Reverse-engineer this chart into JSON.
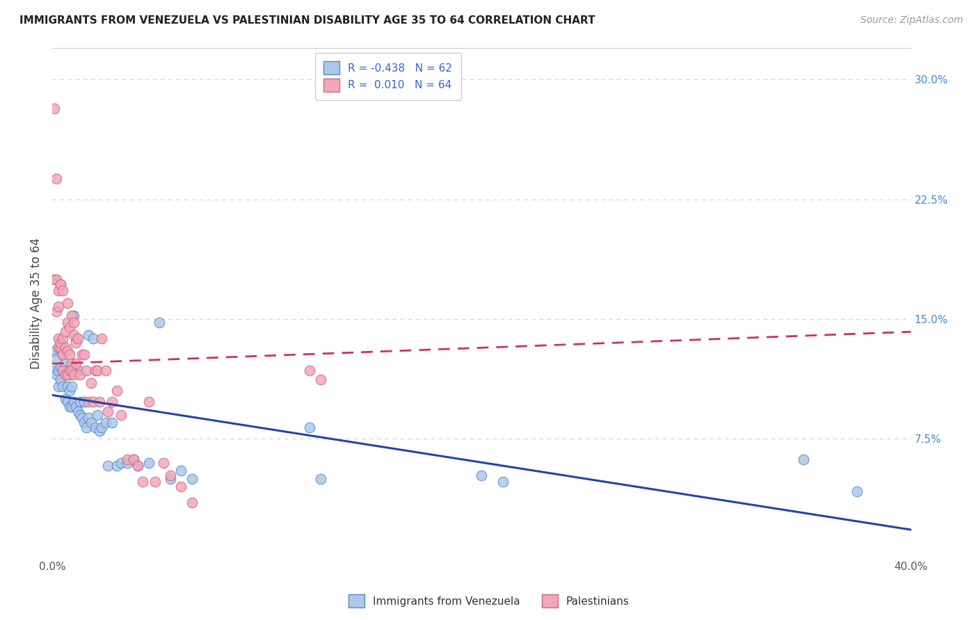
{
  "title": "IMMIGRANTS FROM VENEZUELA VS PALESTINIAN DISABILITY AGE 35 TO 64 CORRELATION CHART",
  "source": "Source: ZipAtlas.com",
  "ylabel": "Disability Age 35 to 64",
  "xlim": [
    0.0,
    0.4
  ],
  "ylim": [
    0.0,
    0.32
  ],
  "xticks": [
    0.0,
    0.05,
    0.1,
    0.15,
    0.2,
    0.25,
    0.3,
    0.35,
    0.4
  ],
  "xticklabels": [
    "0.0%",
    "",
    "",
    "",
    "",
    "",
    "",
    "",
    "40.0%"
  ],
  "yticks_right": [
    0.075,
    0.15,
    0.225,
    0.3
  ],
  "yticklabels_right": [
    "7.5%",
    "15.0%",
    "22.5%",
    "30.0%"
  ],
  "grid_color": "#d8d8d8",
  "background_color": "#ffffff",
  "venezuela_color": "#adc8e8",
  "venezuela_edge": "#5588cc",
  "palestine_color": "#f0a8b8",
  "palestine_edge": "#cc6688",
  "trend_blue": "#2244aa",
  "trend_pink": "#cc3355",
  "R_venezuela": -0.438,
  "N_venezuela": 62,
  "R_palestine": 0.01,
  "N_palestine": 64,
  "legend_label_venezuela": "Immigrants from Venezuela",
  "legend_label_palestine": "Palestinians",
  "venezuela_x": [
    0.001,
    0.001,
    0.002,
    0.002,
    0.003,
    0.003,
    0.003,
    0.004,
    0.004,
    0.005,
    0.005,
    0.005,
    0.006,
    0.006,
    0.006,
    0.007,
    0.007,
    0.007,
    0.008,
    0.008,
    0.008,
    0.009,
    0.009,
    0.01,
    0.01,
    0.011,
    0.011,
    0.012,
    0.012,
    0.013,
    0.013,
    0.014,
    0.015,
    0.015,
    0.016,
    0.017,
    0.017,
    0.018,
    0.019,
    0.02,
    0.021,
    0.022,
    0.023,
    0.025,
    0.026,
    0.028,
    0.03,
    0.032,
    0.035,
    0.038,
    0.04,
    0.045,
    0.05,
    0.055,
    0.06,
    0.065,
    0.12,
    0.125,
    0.2,
    0.21,
    0.35,
    0.375
  ],
  "venezuela_y": [
    0.13,
    0.118,
    0.125,
    0.115,
    0.132,
    0.118,
    0.108,
    0.12,
    0.112,
    0.128,
    0.118,
    0.108,
    0.122,
    0.115,
    0.1,
    0.118,
    0.108,
    0.098,
    0.115,
    0.105,
    0.095,
    0.108,
    0.095,
    0.152,
    0.098,
    0.138,
    0.095,
    0.118,
    0.092,
    0.098,
    0.09,
    0.088,
    0.085,
    0.098,
    0.082,
    0.14,
    0.088,
    0.085,
    0.138,
    0.082,
    0.09,
    0.08,
    0.082,
    0.085,
    0.058,
    0.085,
    0.058,
    0.06,
    0.06,
    0.062,
    0.058,
    0.06,
    0.148,
    0.05,
    0.055,
    0.05,
    0.082,
    0.05,
    0.052,
    0.048,
    0.062,
    0.042
  ],
  "palestine_x": [
    0.001,
    0.001,
    0.002,
    0.002,
    0.002,
    0.003,
    0.003,
    0.003,
    0.003,
    0.004,
    0.004,
    0.004,
    0.004,
    0.005,
    0.005,
    0.005,
    0.005,
    0.006,
    0.006,
    0.006,
    0.007,
    0.007,
    0.007,
    0.007,
    0.008,
    0.008,
    0.008,
    0.009,
    0.009,
    0.009,
    0.01,
    0.01,
    0.01,
    0.011,
    0.011,
    0.012,
    0.013,
    0.014,
    0.015,
    0.016,
    0.017,
    0.018,
    0.019,
    0.02,
    0.021,
    0.022,
    0.023,
    0.025,
    0.026,
    0.028,
    0.03,
    0.032,
    0.035,
    0.038,
    0.04,
    0.042,
    0.045,
    0.048,
    0.052,
    0.055,
    0.06,
    0.065,
    0.12,
    0.125
  ],
  "palestine_y": [
    0.282,
    0.175,
    0.175,
    0.155,
    0.238,
    0.158,
    0.138,
    0.132,
    0.168,
    0.172,
    0.132,
    0.135,
    0.172,
    0.138,
    0.128,
    0.118,
    0.168,
    0.132,
    0.115,
    0.142,
    0.13,
    0.115,
    0.148,
    0.16,
    0.145,
    0.128,
    0.118,
    0.152,
    0.122,
    0.118,
    0.148,
    0.14,
    0.115,
    0.135,
    0.122,
    0.138,
    0.115,
    0.128,
    0.128,
    0.118,
    0.098,
    0.11,
    0.098,
    0.118,
    0.118,
    0.098,
    0.138,
    0.118,
    0.092,
    0.098,
    0.105,
    0.09,
    0.062,
    0.062,
    0.058,
    0.048,
    0.098,
    0.048,
    0.06,
    0.052,
    0.045,
    0.035,
    0.118,
    0.112
  ]
}
